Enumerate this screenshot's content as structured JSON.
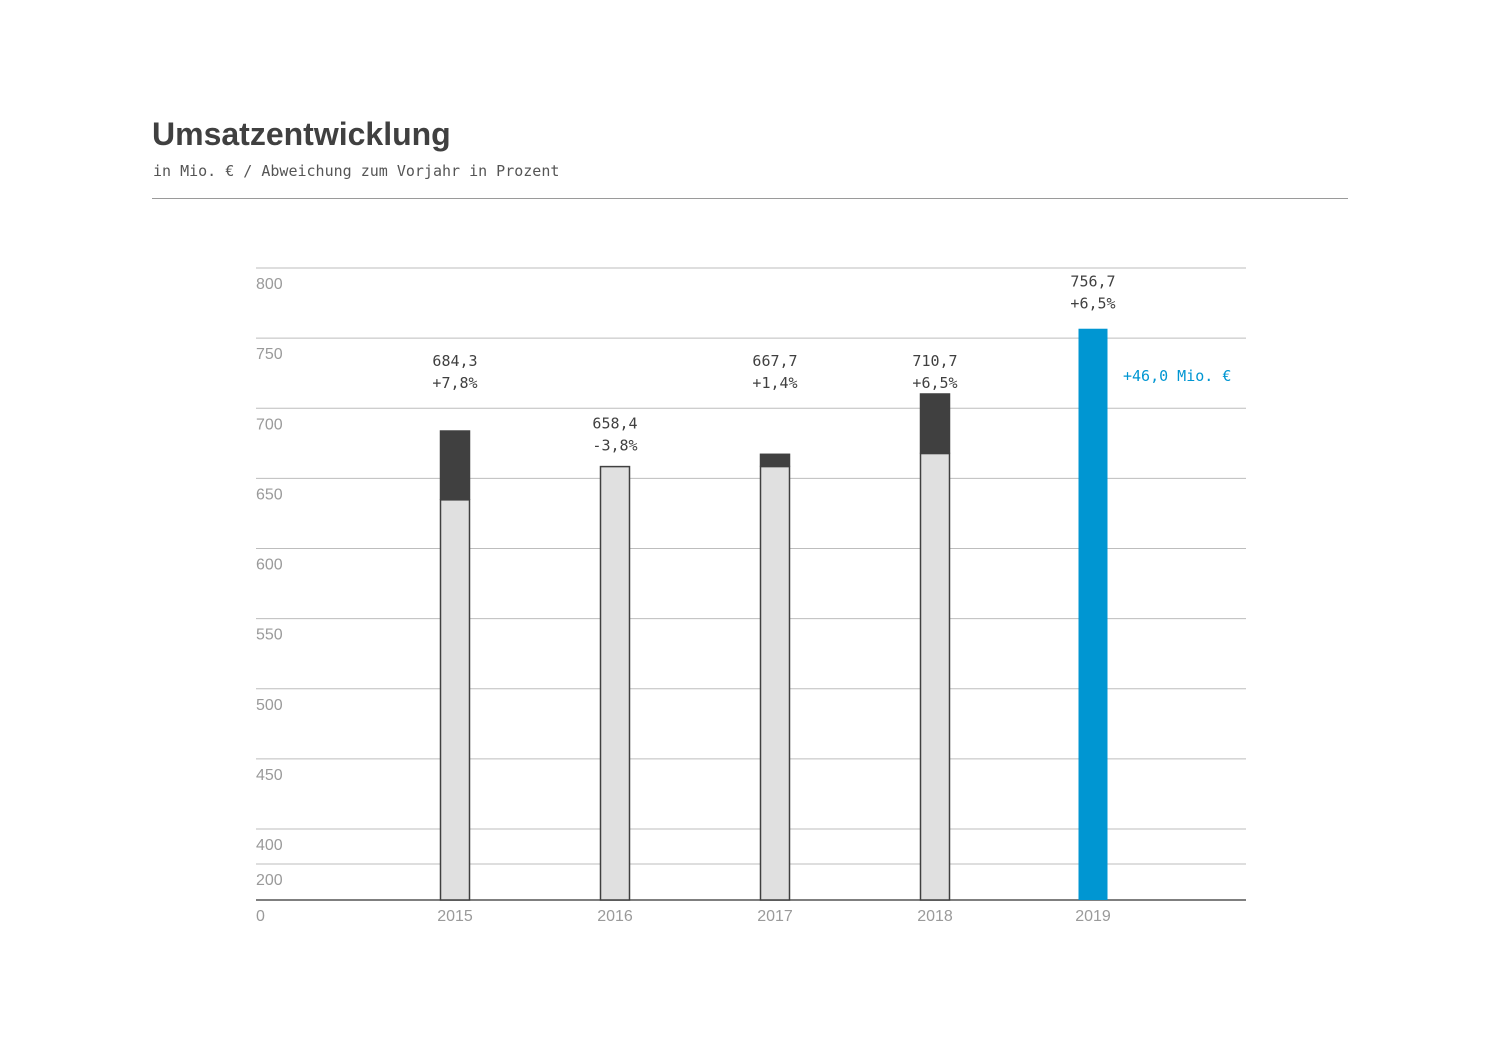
{
  "title": "Umsatzentwicklung",
  "subtitle": "in Mio. € / Abweichung zum Vorjahr in Prozent",
  "colors": {
    "prior_base": "#e0e0e0",
    "increase": "#404040",
    "highlight": "#0096d2",
    "gridline": "#bdbdbd",
    "tick_text": "#9a9a9a"
  },
  "chart_data": {
    "type": "bar",
    "title": "Umsatzentwicklung",
    "subtitle": "in Mio. € / Abweichung zum Vorjahr in Prozent",
    "categories": [
      "2015",
      "2016",
      "2017",
      "2018",
      "2019"
    ],
    "values": [
      684.3,
      658.4,
      667.7,
      710.7,
      756.7
    ],
    "value_labels": [
      "684,3",
      "658,4",
      "667,7",
      "710,7",
      "756,7"
    ],
    "change_labels": [
      "+7,8%",
      "-3,8%",
      "+1,4%",
      "+6,5%",
      "+6,5%"
    ],
    "previous_year_values": [
      634.7,
      684.3,
      658.4,
      667.7,
      710.7
    ],
    "highlight_category": "2019",
    "highlight_annotation": "+46,0 Mio. €",
    "y_ticks": [
      "0",
      "200",
      "400",
      "450",
      "500",
      "550",
      "600",
      "650",
      "700",
      "750",
      "800"
    ],
    "ylim": [
      0,
      800
    ],
    "y_axis_break": true,
    "grid": true
  }
}
